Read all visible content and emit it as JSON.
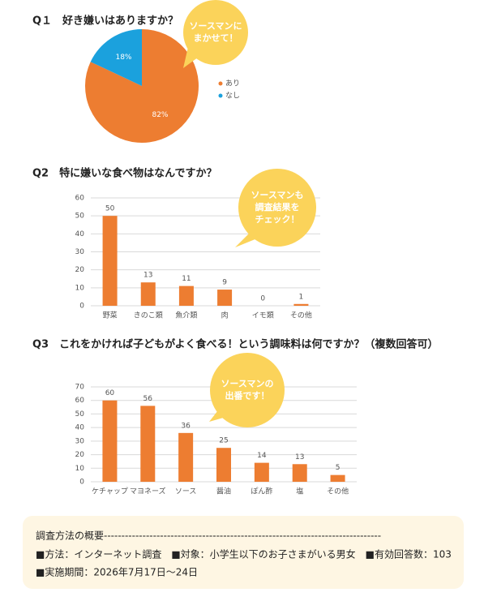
{
  "chart_data": [
    {
      "type": "pie",
      "title": "Q１　好き嫌いはありますか？",
      "categories": [
        "あり",
        "なし"
      ],
      "values": [
        82,
        18
      ],
      "value_labels": [
        "82%",
        "18%"
      ],
      "colors": [
        "#ED7D31",
        "#1BA1DD"
      ],
      "legend": "right",
      "annotation": [
        "ソースマンに",
        "まかせて！"
      ]
    },
    {
      "type": "bar",
      "title": "Q2　特に嫌いな食べ物はなんですか？",
      "categories": [
        "野菜",
        "きのこ類",
        "魚介類",
        "肉",
        "イモ類",
        "その他"
      ],
      "values": [
        50,
        13,
        11,
        9,
        0,
        1
      ],
      "color": "#ED7D31",
      "ylim": [
        0,
        60
      ],
      "yticks": [
        0,
        10,
        20,
        30,
        40,
        50,
        60
      ],
      "grid": true,
      "annotation": [
        "ソースマンも",
        "調査結果を",
        "チェック！"
      ]
    },
    {
      "type": "bar",
      "title": "Q3　これをかければ子どもがよく食べる！という調味料は何ですか？（複数回答可）",
      "categories": [
        "ケチャップ",
        "マヨネーズ",
        "ソース",
        "醤油",
        "ぽん酢",
        "塩",
        "その他"
      ],
      "values": [
        60,
        56,
        36,
        25,
        14,
        13,
        5
      ],
      "color": "#ED7D31",
      "ylim": [
        0,
        70
      ],
      "yticks": [
        0,
        10,
        20,
        30,
        40,
        50,
        60,
        70
      ],
      "grid": true,
      "annotation": [
        "ソースマンの",
        "出番です！"
      ]
    }
  ],
  "survey": {
    "title": "調査方法の概要-------------------------------------------------------------------------------",
    "lines": [
      "■方法：インターネット調査　■対象：小学生以下のお子さまがいる男女　■有効回答数：103",
      "■実施期間：2026年7月17日～24日"
    ]
  }
}
